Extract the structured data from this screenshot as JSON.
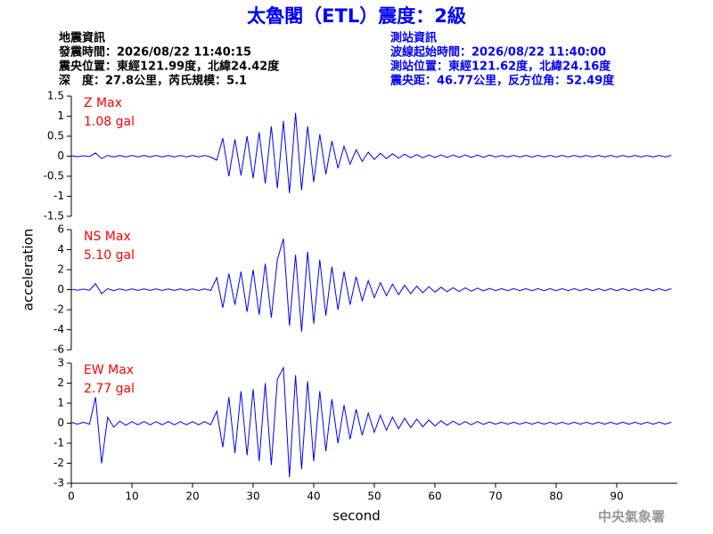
{
  "header": {
    "title": "太魯閣（ETL）震度：2級",
    "left": [
      "地震資訊",
      "發震時間：2026/08/22 11:40:15",
      "震央位置：東經121.99度，北緯24.42度",
      "深　度：27.8公里，芮氏規模：5.1"
    ],
    "right": [
      "測站資訊",
      "波線起始時間：2026/08/22 11:40:00",
      "測站位置：東經121.62度，北緯24.16度",
      "震央距：46.77公里，反方位角：52.49度"
    ],
    "ylabel": "acceleration",
    "credit": "中央氣象署"
  },
  "chart_data": [
    {
      "type": "line",
      "annotation": [
        "Z Max",
        "1.08 gal"
      ],
      "color": "#0000ff",
      "annotation_color": "#ff0000",
      "xlim": [
        0,
        100
      ],
      "ylim": [
        -1.5,
        1.5
      ],
      "yticks": [
        -1.5,
        -1,
        -0.5,
        0,
        0.5,
        1,
        1.5
      ],
      "x": [
        0,
        1,
        2,
        3,
        4,
        5,
        6,
        7,
        8,
        9,
        10,
        11,
        12,
        13,
        14,
        15,
        16,
        17,
        18,
        19,
        20,
        21,
        22,
        23,
        24,
        25,
        26,
        27,
        28,
        29,
        30,
        31,
        32,
        33,
        34,
        35,
        36,
        37,
        38,
        39,
        40,
        41,
        42,
        43,
        44,
        45,
        46,
        47,
        48,
        49,
        50,
        51,
        52,
        53,
        54,
        55,
        56,
        57,
        58,
        59,
        60,
        61,
        62,
        63,
        64,
        65,
        66,
        67,
        68,
        69,
        70,
        71,
        72,
        73,
        74,
        75,
        76,
        77,
        78,
        79,
        80,
        81,
        82,
        83,
        84,
        85,
        86,
        87,
        88,
        89,
        90,
        91,
        92,
        93,
        94,
        95,
        96,
        97,
        98,
        99
      ],
      "values": [
        0.01,
        -0.01,
        0.01,
        -0.01,
        0.08,
        -0.06,
        0.02,
        -0.02,
        0.02,
        -0.02,
        0.02,
        -0.02,
        0.02,
        -0.02,
        0.02,
        -0.02,
        0.02,
        -0.02,
        0.02,
        -0.02,
        0.02,
        -0.02,
        0.02,
        -0.02,
        -0.1,
        0.45,
        -0.5,
        0.42,
        -0.48,
        0.5,
        -0.55,
        0.6,
        -0.68,
        0.75,
        -0.8,
        0.88,
        -0.92,
        1.08,
        -0.85,
        0.75,
        -0.65,
        0.55,
        -0.45,
        0.38,
        -0.3,
        0.25,
        -0.2,
        0.16,
        -0.13,
        0.1,
        -0.08,
        0.07,
        -0.06,
        0.06,
        -0.05,
        0.05,
        -0.04,
        0.04,
        -0.04,
        0.03,
        -0.03,
        0.03,
        -0.03,
        0.03,
        -0.03,
        0.03,
        -0.03,
        0.03,
        -0.03,
        0.03,
        -0.02,
        0.02,
        -0.02,
        0.02,
        -0.02,
        0.02,
        -0.02,
        0.02,
        -0.02,
        0.02,
        -0.02,
        0.02,
        -0.02,
        0.02,
        -0.02,
        0.02,
        -0.02,
        0.02,
        -0.02,
        0.02,
        -0.02,
        0.02,
        -0.02,
        0.02,
        -0.02,
        0.02,
        -0.02,
        0.02,
        -0.02,
        0.02
      ]
    },
    {
      "type": "line",
      "annotation": [
        "NS Max",
        "5.10 gal"
      ],
      "color": "#0000ff",
      "annotation_color": "#ff0000",
      "xlim": [
        0,
        100
      ],
      "ylim": [
        -6,
        6
      ],
      "yticks": [
        -6,
        -4,
        -2,
        0,
        2,
        4,
        6
      ],
      "x": [
        0,
        1,
        2,
        3,
        4,
        5,
        6,
        7,
        8,
        9,
        10,
        11,
        12,
        13,
        14,
        15,
        16,
        17,
        18,
        19,
        20,
        21,
        22,
        23,
        24,
        25,
        26,
        27,
        28,
        29,
        30,
        31,
        32,
        33,
        34,
        35,
        36,
        37,
        38,
        39,
        40,
        41,
        42,
        43,
        44,
        45,
        46,
        47,
        48,
        49,
        50,
        51,
        52,
        53,
        54,
        55,
        56,
        57,
        58,
        59,
        60,
        61,
        62,
        63,
        64,
        65,
        66,
        67,
        68,
        69,
        70,
        71,
        72,
        73,
        74,
        75,
        76,
        77,
        78,
        79,
        80,
        81,
        82,
        83,
        84,
        85,
        86,
        87,
        88,
        89,
        90,
        91,
        92,
        93,
        94,
        95,
        96,
        97,
        98,
        99
      ],
      "values": [
        0.05,
        -0.05,
        0.05,
        -0.05,
        0.6,
        -0.4,
        0.1,
        -0.1,
        0.08,
        -0.08,
        0.08,
        -0.08,
        0.08,
        -0.08,
        0.08,
        -0.08,
        0.08,
        -0.08,
        0.08,
        -0.08,
        0.08,
        -0.08,
        0.08,
        -0.08,
        1.2,
        -1.8,
        1.6,
        -1.5,
        1.8,
        -2.2,
        2.0,
        -2.5,
        2.6,
        -2.8,
        3.0,
        5.1,
        -3.6,
        3.5,
        -4.2,
        3.8,
        -3.4,
        3.0,
        -2.6,
        2.3,
        -2.0,
        1.8,
        -1.5,
        1.3,
        -1.1,
        0.9,
        -0.8,
        0.7,
        -0.6,
        0.55,
        -0.5,
        0.45,
        -0.4,
        0.35,
        -0.3,
        0.3,
        -0.25,
        0.25,
        -0.2,
        0.2,
        -0.18,
        0.18,
        -0.15,
        0.15,
        -0.12,
        0.12,
        -0.1,
        0.1,
        -0.1,
        0.1,
        -0.1,
        0.1,
        -0.1,
        0.1,
        -0.1,
        0.1,
        -0.1,
        0.1,
        -0.1,
        0.1,
        -0.1,
        0.1,
        -0.1,
        0.1,
        -0.1,
        0.1,
        -0.1,
        0.1,
        -0.1,
        0.1,
        -0.1,
        0.1,
        -0.1,
        0.1,
        -0.1,
        0.1
      ]
    },
    {
      "type": "line",
      "annotation": [
        "EW Max",
        "2.77 gal"
      ],
      "color": "#0000ff",
      "annotation_color": "#ff0000",
      "xlim": [
        0,
        100
      ],
      "xticks": [
        0,
        10,
        20,
        30,
        40,
        50,
        60,
        70,
        80,
        90
      ],
      "xlabel": "second",
      "ylim": [
        -3,
        3
      ],
      "yticks": [
        -3,
        -2,
        -1,
        0,
        1,
        2,
        3
      ],
      "x": [
        0,
        1,
        2,
        3,
        4,
        5,
        6,
        7,
        8,
        9,
        10,
        11,
        12,
        13,
        14,
        15,
        16,
        17,
        18,
        19,
        20,
        21,
        22,
        23,
        24,
        25,
        26,
        27,
        28,
        29,
        30,
        31,
        32,
        33,
        34,
        35,
        36,
        37,
        38,
        39,
        40,
        41,
        42,
        43,
        44,
        45,
        46,
        47,
        48,
        49,
        50,
        51,
        52,
        53,
        54,
        55,
        56,
        57,
        58,
        59,
        60,
        61,
        62,
        63,
        64,
        65,
        66,
        67,
        68,
        69,
        70,
        71,
        72,
        73,
        74,
        75,
        76,
        77,
        78,
        79,
        80,
        81,
        82,
        83,
        84,
        85,
        86,
        87,
        88,
        89,
        90,
        91,
        92,
        93,
        94,
        95,
        96,
        97,
        98,
        99
      ],
      "values": [
        0.05,
        -0.05,
        0.05,
        -0.05,
        1.3,
        -2.0,
        0.3,
        -0.2,
        0.1,
        -0.1,
        0.08,
        -0.08,
        0.08,
        -0.08,
        0.08,
        -0.08,
        0.08,
        -0.08,
        0.08,
        -0.08,
        0.08,
        -0.08,
        0.08,
        -0.08,
        0.6,
        -1.2,
        1.3,
        -1.5,
        1.6,
        -1.6,
        1.7,
        -1.9,
        2.0,
        -2.1,
        2.2,
        2.77,
        -2.7,
        2.4,
        -2.3,
        2.1,
        -1.9,
        1.6,
        -1.4,
        1.2,
        -1.0,
        0.9,
        -0.8,
        0.7,
        -0.6,
        0.5,
        -0.45,
        0.4,
        -0.35,
        0.3,
        -0.28,
        0.25,
        -0.22,
        0.2,
        -0.18,
        0.16,
        -0.14,
        0.12,
        -0.1,
        0.1,
        -0.08,
        0.08,
        -0.08,
        0.08,
        -0.06,
        0.06,
        -0.05,
        0.05,
        -0.05,
        0.05,
        -0.05,
        0.05,
        -0.05,
        0.05,
        -0.05,
        0.05,
        -0.05,
        0.05,
        -0.05,
        0.05,
        -0.05,
        0.05,
        -0.05,
        0.05,
        -0.05,
        0.05,
        -0.05,
        0.05,
        -0.05,
        0.05,
        -0.05,
        0.05,
        -0.05,
        0.05,
        -0.05,
        0.05
      ]
    }
  ]
}
